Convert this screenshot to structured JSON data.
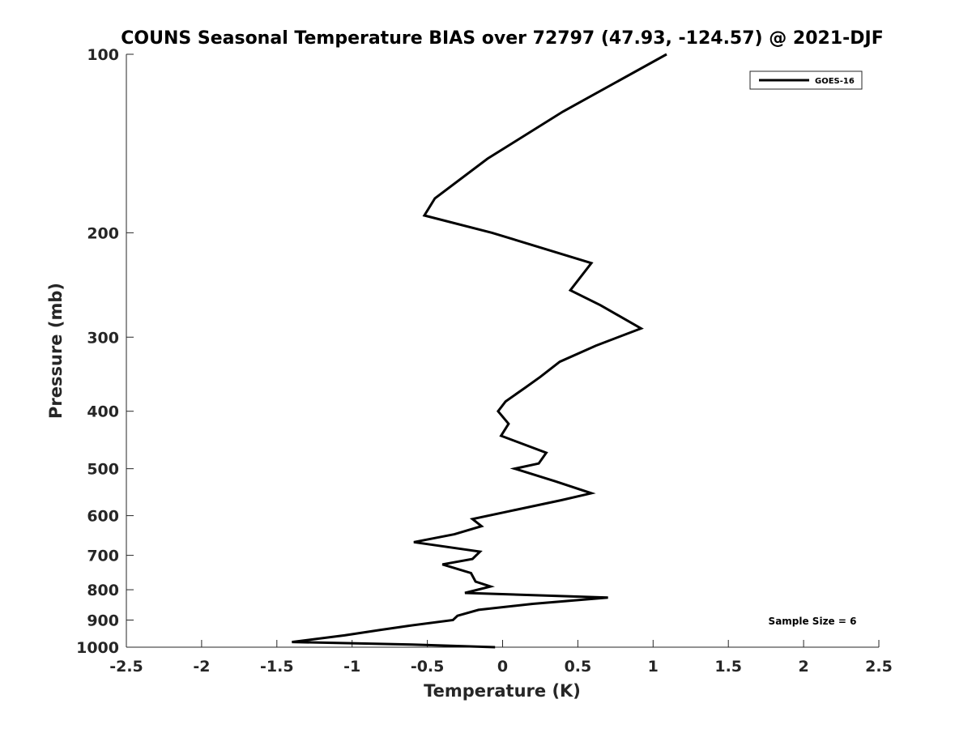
{
  "chart_data": {
    "type": "line",
    "title": "COUNS Seasonal Temperature BIAS over 72797 (47.93, -124.57) @ 2021-DJF",
    "xlabel": "Temperature (K)",
    "ylabel": "Pressure (mb)",
    "xlim": [
      -2.5,
      2.5
    ],
    "ylim": [
      100,
      1000
    ],
    "y_scale": "log",
    "y_reversed": true,
    "grid": false,
    "legend_position": "top-right",
    "x_ticks": [
      -2.5,
      -2,
      -1.5,
      -1,
      -0.5,
      0,
      0.5,
      1,
      1.5,
      2,
      2.5
    ],
    "x_tick_labels": [
      "-2.5",
      "-2",
      "-1.5",
      "-1",
      "-0.5",
      "0",
      "0.5",
      "1",
      "1.5",
      "2",
      "2.5"
    ],
    "y_ticks": [
      100,
      200,
      300,
      400,
      500,
      600,
      700,
      800,
      900,
      1000
    ],
    "y_tick_labels": [
      "100",
      "200",
      "300",
      "400",
      "500",
      "600",
      "700",
      "800",
      "900",
      "1000"
    ],
    "series": [
      {
        "name": "GOES-16",
        "color": "#000000",
        "points": [
          {
            "x": 1.09,
            "y": 100
          },
          {
            "x": 0.4,
            "y": 125
          },
          {
            "x": -0.1,
            "y": 150
          },
          {
            "x": -0.45,
            "y": 175
          },
          {
            "x": -0.52,
            "y": 187
          },
          {
            "x": -0.07,
            "y": 200
          },
          {
            "x": 0.59,
            "y": 225
          },
          {
            "x": 0.45,
            "y": 250
          },
          {
            "x": 0.65,
            "y": 265
          },
          {
            "x": 0.92,
            "y": 290
          },
          {
            "x": 0.62,
            "y": 310
          },
          {
            "x": 0.38,
            "y": 330
          },
          {
            "x": 0.25,
            "y": 350
          },
          {
            "x": 0.15,
            "y": 365
          },
          {
            "x": 0.02,
            "y": 385
          },
          {
            "x": -0.03,
            "y": 400
          },
          {
            "x": 0.04,
            "y": 420
          },
          {
            "x": -0.01,
            "y": 440
          },
          {
            "x": 0.29,
            "y": 470
          },
          {
            "x": 0.24,
            "y": 490
          },
          {
            "x": 0.08,
            "y": 500
          },
          {
            "x": 0.35,
            "y": 525
          },
          {
            "x": 0.59,
            "y": 550
          },
          {
            "x": 0.39,
            "y": 565
          },
          {
            "x": 0.04,
            "y": 590
          },
          {
            "x": -0.2,
            "y": 608
          },
          {
            "x": -0.14,
            "y": 625
          },
          {
            "x": -0.32,
            "y": 645
          },
          {
            "x": -0.59,
            "y": 665
          },
          {
            "x": -0.15,
            "y": 690
          },
          {
            "x": -0.2,
            "y": 710
          },
          {
            "x": -0.4,
            "y": 725
          },
          {
            "x": -0.21,
            "y": 750
          },
          {
            "x": -0.18,
            "y": 775
          },
          {
            "x": -0.08,
            "y": 790
          },
          {
            "x": -0.25,
            "y": 810
          },
          {
            "x": 0.7,
            "y": 825
          },
          {
            "x": 0.2,
            "y": 845
          },
          {
            "x": -0.16,
            "y": 865
          },
          {
            "x": -0.3,
            "y": 885
          },
          {
            "x": -0.33,
            "y": 900
          },
          {
            "x": -0.62,
            "y": 920
          },
          {
            "x": -0.81,
            "y": 935
          },
          {
            "x": -1.05,
            "y": 955
          },
          {
            "x": -1.4,
            "y": 980
          },
          {
            "x": -0.6,
            "y": 990
          },
          {
            "x": -0.05,
            "y": 1000
          }
        ]
      }
    ],
    "annotation": "Sample Size = 6"
  }
}
